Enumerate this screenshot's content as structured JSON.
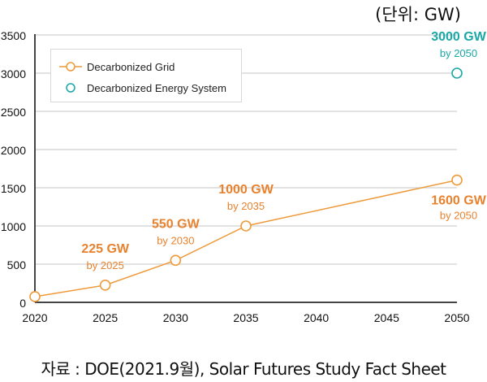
{
  "unit_label": "(단위: GW)",
  "source": "자료 : DOE(2021.9월), Solar Futures Study Fact Sheet",
  "colors": {
    "grid_series": "#ee9a3a",
    "grid_label": "#e8822e",
    "energy_series": "#1aa8a5",
    "axis": "#444444",
    "gridline": "#d9d9d9"
  },
  "chart_data": {
    "type": "line",
    "title": "",
    "xlabel": "",
    "ylabel": "",
    "unit": "GW",
    "x_ticks": [
      "2020",
      "2025",
      "2030",
      "2035",
      "2040",
      "2045",
      "2050"
    ],
    "xlim": [
      2020,
      2050
    ],
    "y_ticks": [
      "0",
      "500",
      "1000",
      "1500",
      "2000",
      "2500",
      "3000",
      "3500"
    ],
    "ylim": [
      0,
      3500
    ],
    "grid": true,
    "legend_position": "top-left",
    "series": [
      {
        "name": "Decarbonized Grid",
        "style": "line-with-markers",
        "points": [
          {
            "x": 2020,
            "y": 75
          },
          {
            "x": 2025,
            "y": 225
          },
          {
            "x": 2030,
            "y": 550
          },
          {
            "x": 2035,
            "y": 1000
          },
          {
            "x": 2050,
            "y": 1600
          }
        ]
      },
      {
        "name": "Decarbonized Energy System",
        "style": "markers-only",
        "points": [
          {
            "x": 2050,
            "y": 3000
          }
        ]
      }
    ],
    "annotations": [
      {
        "series": 0,
        "x": 2025,
        "y": 225,
        "value": "225 GW",
        "sub": "by 2025",
        "placement": "above"
      },
      {
        "series": 0,
        "x": 2030,
        "y": 550,
        "value": "550 GW",
        "sub": "by 2030",
        "placement": "above"
      },
      {
        "series": 0,
        "x": 2035,
        "y": 1000,
        "value": "1000 GW",
        "sub": "by 2035",
        "placement": "above"
      },
      {
        "series": 0,
        "x": 2050,
        "y": 1600,
        "value": "1600 GW",
        "sub": "by 2050",
        "placement": "below"
      },
      {
        "series": 1,
        "x": 2050,
        "y": 3000,
        "value": "3000 GW",
        "sub": "by 2050",
        "placement": "above"
      }
    ]
  }
}
